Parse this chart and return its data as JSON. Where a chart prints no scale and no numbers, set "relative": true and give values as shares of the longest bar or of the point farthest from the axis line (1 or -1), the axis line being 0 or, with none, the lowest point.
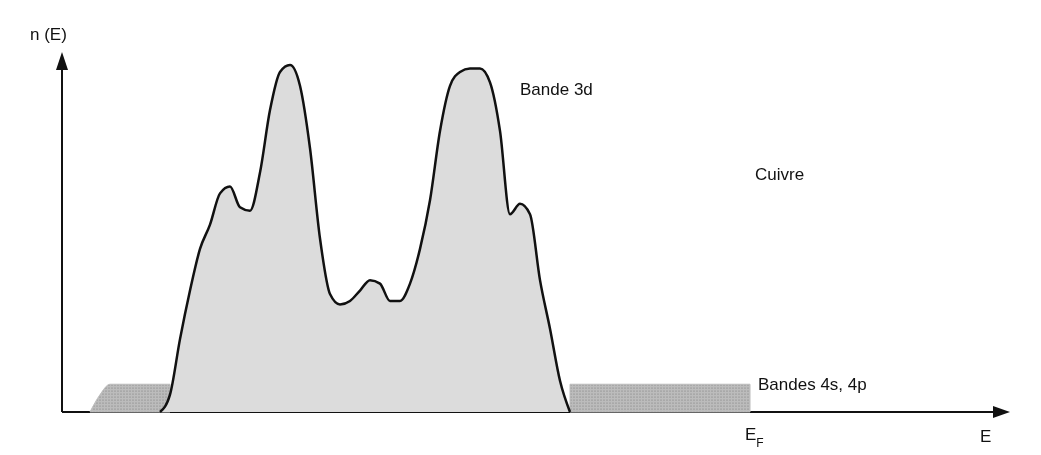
{
  "chart_data": {
    "type": "area",
    "relative": true,
    "xlabel": "E",
    "ylabel": "n (E)",
    "categories": [
      null,
      null,
      null,
      null,
      null,
      null,
      null,
      null,
      null,
      null,
      null,
      null,
      null,
      null,
      null,
      null,
      null,
      null,
      null,
      null,
      null,
      null,
      null,
      null,
      null,
      null,
      null,
      null,
      null,
      null,
      null,
      null,
      null,
      null,
      null,
      null,
      null,
      null,
      null,
      null,
      null,
      null,
      null,
      null,
      null,
      null,
      null,
      null,
      null,
      null,
      null,
      null,
      null,
      null,
      null,
      null,
      null,
      null,
      null,
      null,
      null,
      null,
      null,
      null,
      null,
      null,
      null,
      null,
      null,
      null,
      null,
      null,
      null,
      null,
      null,
      null,
      null,
      null,
      null,
      null,
      null,
      null,
      null,
      null,
      null,
      null,
      null,
      null,
      null,
      null,
      null,
      null,
      null
    ],
    "series": [
      {
        "name": "Bandes 4s, 4p",
        "color": "#bcbcbc",
        "values": [
          null,
          null,
          0,
          0.05,
          0.08,
          0.08,
          0.08,
          0.08,
          0.08,
          0.08,
          0.08,
          null,
          null,
          null,
          null,
          null,
          null,
          null,
          null,
          null,
          null,
          null,
          null,
          null,
          null,
          null,
          null,
          null,
          null,
          null,
          null,
          null,
          null,
          null,
          null,
          null,
          null,
          null,
          null,
          null,
          null,
          null,
          null,
          null,
          null,
          null,
          null,
          null,
          null,
          null,
          0.08,
          0.08,
          0.08,
          0.08,
          0.08,
          0.08,
          0.08,
          0.08,
          0.08,
          0.08,
          0.08,
          0.08,
          0.08,
          0.08,
          0.08,
          0.08,
          0.08,
          0.08,
          0.08,
          null,
          null,
          null,
          null,
          null,
          null,
          null,
          null,
          null,
          null,
          null,
          null,
          null,
          null,
          null,
          null,
          null,
          null,
          null,
          null,
          null,
          null,
          null,
          null
        ]
      },
      {
        "name": "Bande 3d",
        "color": "#dcdcdc",
        "values": [
          null,
          null,
          null,
          null,
          null,
          null,
          null,
          null,
          null,
          0,
          0.05,
          0.21,
          0.35,
          0.47,
          0.54,
          0.63,
          0.65,
          0.59,
          0.58,
          0.69,
          0.87,
          0.98,
          1,
          0.94,
          0.76,
          0.5,
          0.34,
          0.31,
          0.32,
          0.35,
          0.38,
          0.37,
          0.32,
          0.32,
          0.37,
          0.47,
          0.61,
          0.81,
          0.94,
          0.98,
          0.99,
          0.99,
          0.95,
          0.81,
          0.57,
          0.6,
          0.57,
          0.38,
          0.24,
          0.09,
          0,
          null,
          null,
          null,
          null,
          null,
          null,
          null,
          null,
          null,
          null,
          null,
          null,
          null,
          null,
          null,
          null,
          null,
          null,
          null,
          null,
          null,
          null,
          null,
          null,
          null,
          null,
          null,
          null,
          null,
          null,
          null,
          null,
          null,
          null,
          null,
          null,
          null,
          null,
          null,
          null,
          null,
          null
        ]
      }
    ],
    "annotations": [
      "Cuivre",
      "E$_{F}$"
    ]
  }
}
